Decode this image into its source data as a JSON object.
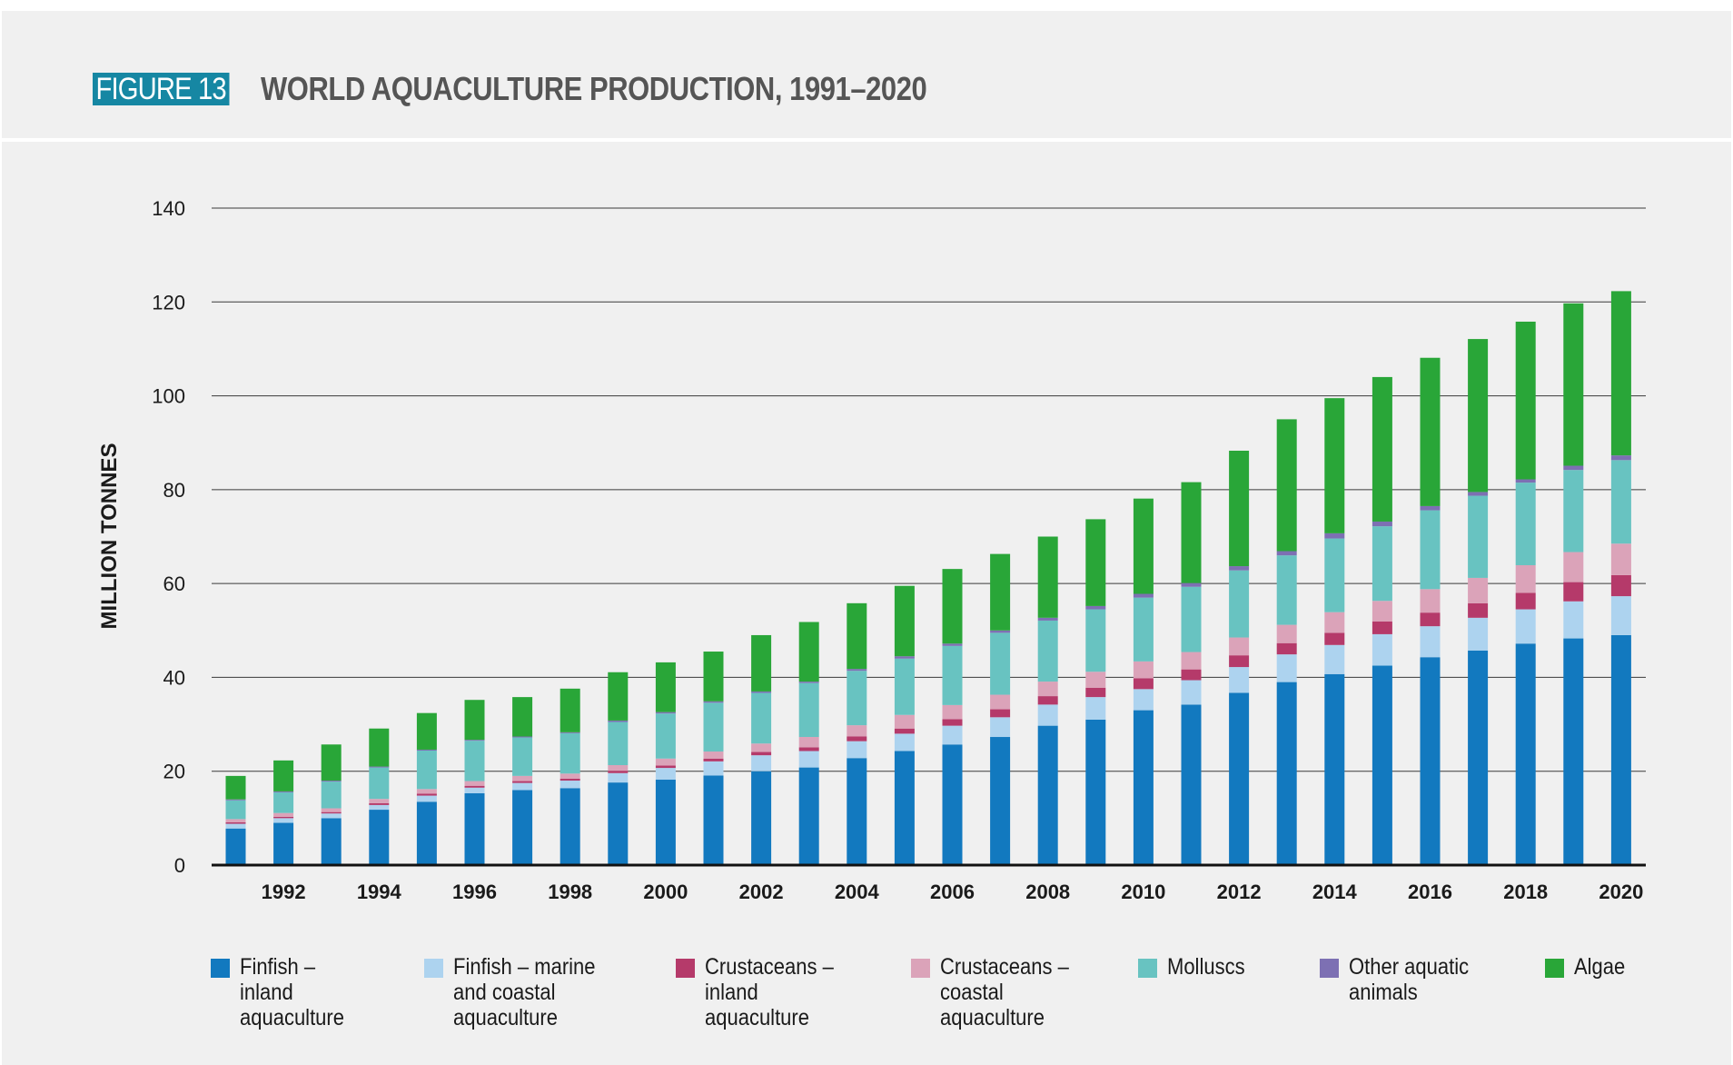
{
  "header": {
    "figure_label": "FIGURE 13",
    "title": "WORLD AQUACULTURE PRODUCTION, 1991–2020"
  },
  "chart_data": {
    "type": "bar",
    "stacked": true,
    "ylabel": "MILLION TONNES",
    "xlabel": "",
    "ylim": [
      0,
      140
    ],
    "yticks": [
      0,
      20,
      40,
      60,
      80,
      100,
      120,
      140
    ],
    "x_tick_labels": [
      "1992",
      "1994",
      "1996",
      "1998",
      "2000",
      "2002",
      "2004",
      "2006",
      "2008",
      "2010",
      "2012",
      "2014",
      "2016",
      "2018",
      "2020"
    ],
    "grid": "horizontal",
    "legend_position": "bottom",
    "categories": [
      1991,
      1992,
      1993,
      1994,
      1995,
      1996,
      1997,
      1998,
      1999,
      2000,
      2001,
      2002,
      2003,
      2004,
      2005,
      2006,
      2007,
      2008,
      2009,
      2010,
      2011,
      2012,
      2013,
      2014,
      2015,
      2016,
      2017,
      2018,
      2019,
      2020
    ],
    "series": [
      {
        "name": "Finfish –\ninland\naquaculture",
        "color": "#1279bf",
        "values": [
          7.8,
          9.0,
          10.0,
          11.8,
          13.5,
          15.3,
          16.0,
          16.4,
          17.6,
          18.2,
          19.1,
          20.0,
          20.8,
          22.8,
          24.3,
          25.7,
          27.3,
          29.7,
          31.0,
          33.0,
          34.2,
          36.7,
          39.0,
          40.7,
          42.5,
          44.3,
          45.7,
          47.2,
          48.3,
          49.0
        ]
      },
      {
        "name": "Finfish – marine\nand coastal\naquaculture",
        "color": "#add3ef",
        "values": [
          1.0,
          1.0,
          1.0,
          1.0,
          1.3,
          1.2,
          1.5,
          1.6,
          2.0,
          2.5,
          3.0,
          3.4,
          3.5,
          3.6,
          3.7,
          4.0,
          4.2,
          4.5,
          4.8,
          4.5,
          5.2,
          5.5,
          5.9,
          6.2,
          6.7,
          6.6,
          7.0,
          7.3,
          7.9,
          8.3
        ]
      },
      {
        "name": "Crustaceans –\ninland\naquaculture",
        "color": "#b53a6a",
        "values": [
          0.3,
          0.3,
          0.3,
          0.4,
          0.4,
          0.4,
          0.4,
          0.4,
          0.5,
          0.5,
          0.6,
          0.7,
          0.8,
          1.0,
          1.1,
          1.4,
          1.7,
          1.8,
          2.0,
          2.3,
          2.3,
          2.5,
          2.4,
          2.6,
          2.7,
          2.9,
          3.1,
          3.5,
          4.1,
          4.5
        ]
      },
      {
        "name": "Crustaceans –\ncoastal\naquaculture",
        "color": "#dba3b9",
        "values": [
          0.7,
          0.8,
          0.8,
          0.9,
          1.0,
          1.0,
          1.1,
          1.1,
          1.2,
          1.5,
          1.5,
          1.8,
          2.2,
          2.4,
          2.9,
          3.0,
          3.1,
          3.1,
          3.4,
          3.6,
          3.7,
          3.8,
          3.9,
          4.4,
          4.4,
          5.0,
          5.4,
          5.9,
          6.4,
          6.7
        ]
      },
      {
        "name": "Molluscs",
        "color": "#68c3c1",
        "values": [
          4.0,
          4.4,
          5.7,
          6.7,
          8.2,
          8.6,
          8.2,
          8.6,
          9.2,
          9.6,
          10.4,
          10.8,
          11.5,
          11.6,
          12.0,
          12.6,
          13.2,
          13.0,
          13.3,
          13.6,
          13.9,
          14.3,
          14.8,
          15.7,
          15.9,
          16.8,
          17.5,
          17.6,
          17.5,
          17.8
        ]
      },
      {
        "name": "Other aquatic\nanimals",
        "color": "#7d70b3",
        "values": [
          0.2,
          0.2,
          0.2,
          0.2,
          0.2,
          0.2,
          0.2,
          0.2,
          0.3,
          0.3,
          0.3,
          0.3,
          0.3,
          0.4,
          0.5,
          0.5,
          0.5,
          0.6,
          0.7,
          0.8,
          0.8,
          0.9,
          0.9,
          1.1,
          1.0,
          0.9,
          0.8,
          0.7,
          0.9,
          1.0
        ]
      },
      {
        "name": "Algae",
        "color": "#29a638",
        "values": [
          5.0,
          6.6,
          7.7,
          8.1,
          7.8,
          8.5,
          8.4,
          9.3,
          10.3,
          10.6,
          10.6,
          12.0,
          12.7,
          14.0,
          15.0,
          15.9,
          16.3,
          17.3,
          18.5,
          20.3,
          21.5,
          24.6,
          28.1,
          28.8,
          30.8,
          31.6,
          32.6,
          33.6,
          34.6,
          35.0
        ]
      }
    ]
  }
}
